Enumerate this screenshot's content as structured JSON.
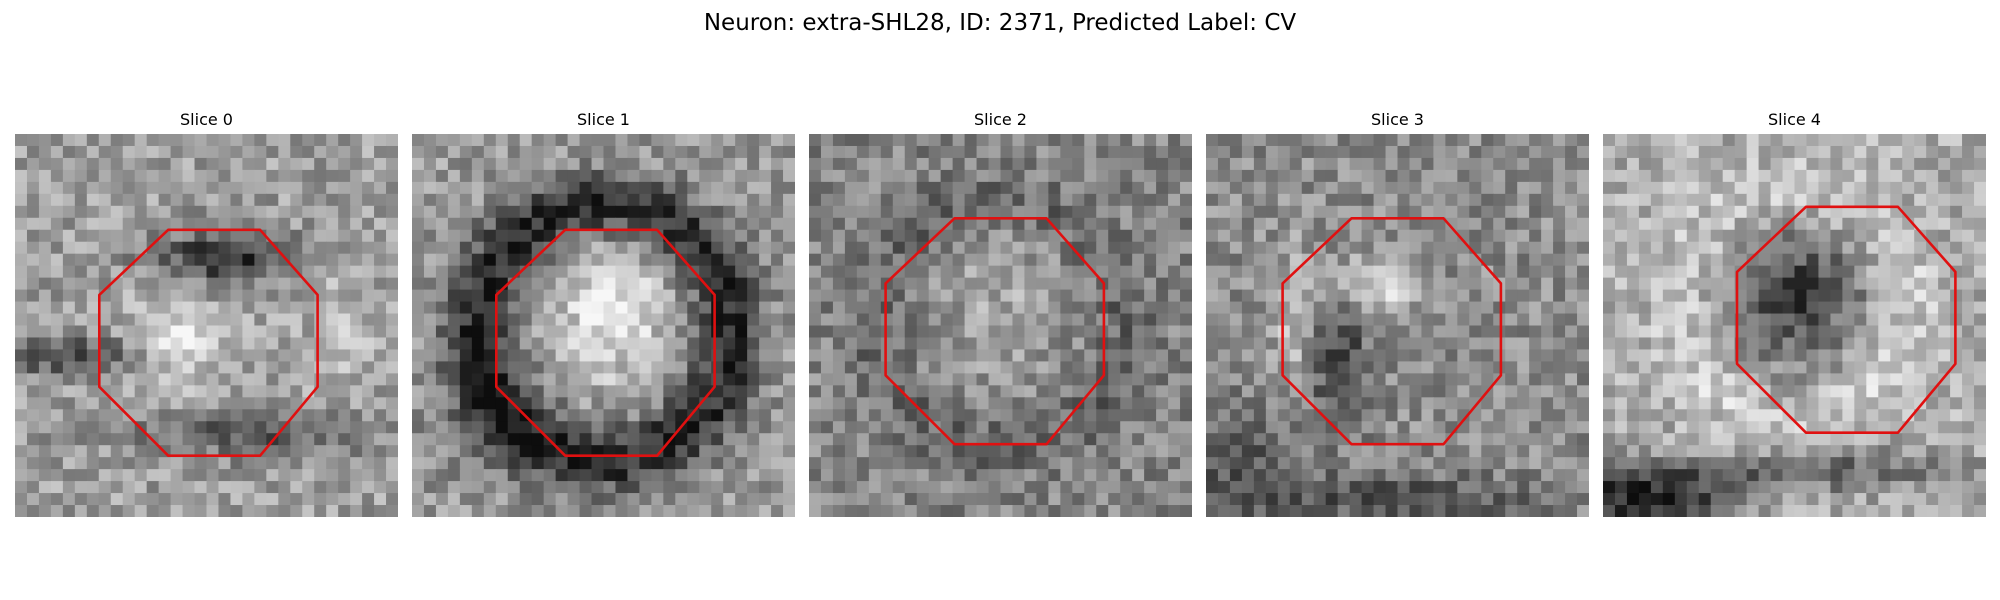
{
  "figure": {
    "title": "Neuron: extra-SHL28, ID: 2371, Predicted Label: CV"
  },
  "panels": [
    {
      "title": "Slice 0",
      "seed": 11,
      "pattern": "bright-blob-dark-cap"
    },
    {
      "title": "Slice 1",
      "seed": 23,
      "pattern": "bright-center-dark-ring"
    },
    {
      "title": "Slice 2",
      "seed": 37,
      "pattern": "noisy-mid-gray"
    },
    {
      "title": "Slice 3",
      "seed": 53,
      "pattern": "bright-left-center-spot"
    },
    {
      "title": "Slice 4",
      "seed": 71,
      "pattern": "dark-center-bright-ring"
    }
  ],
  "contour": {
    "color": "#e01010",
    "shape": "octagon"
  },
  "colormap": "gray"
}
